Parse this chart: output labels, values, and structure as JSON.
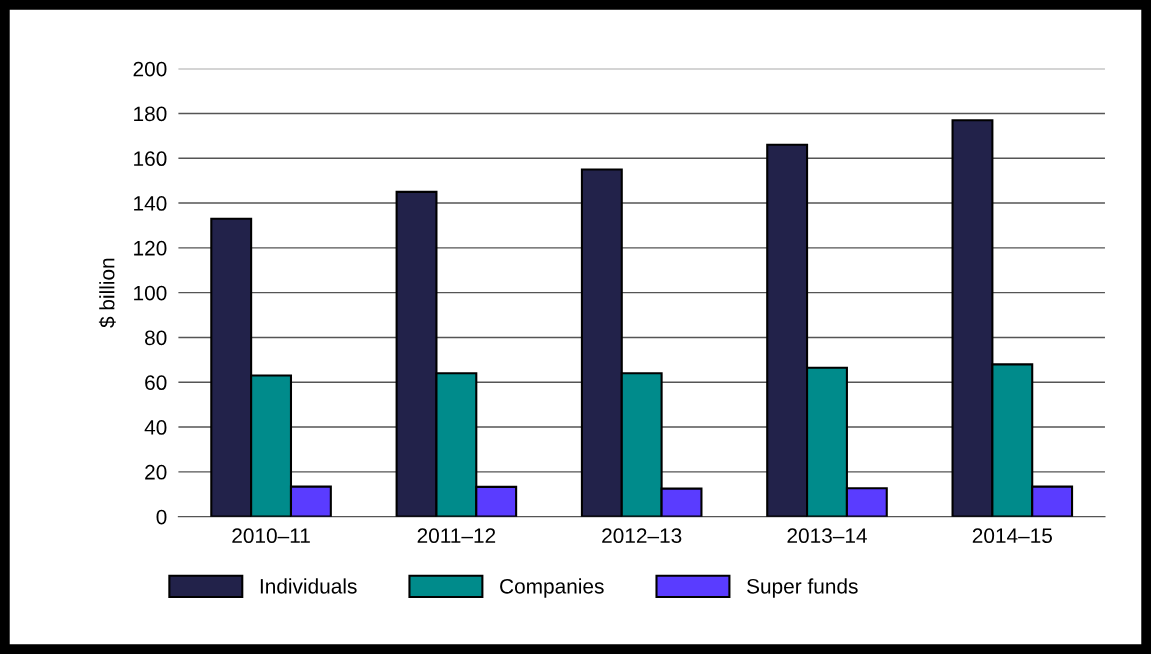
{
  "chart_data": {
    "type": "bar",
    "ylabel": "$ billion",
    "categories": [
      "2010–11",
      "2011–12",
      "2012–13",
      "2013–14",
      "2014–15"
    ],
    "series": [
      {
        "name": "Individuals",
        "color": "#22224a",
        "values": [
          133,
          145,
          155,
          166,
          177
        ]
      },
      {
        "name": "Companies",
        "color": "#008b8b",
        "values": [
          63,
          64,
          64,
          66.5,
          68
        ]
      },
      {
        "name": "Super funds",
        "color": "#5a3cff",
        "values": [
          13.4,
          13.3,
          12.5,
          12.7,
          13.4
        ]
      }
    ],
    "ylim": [
      0,
      200
    ],
    "yticks": [
      0,
      20,
      40,
      60,
      80,
      100,
      120,
      140,
      160,
      180,
      200
    ],
    "grid": "y",
    "legend": "bottom"
  }
}
